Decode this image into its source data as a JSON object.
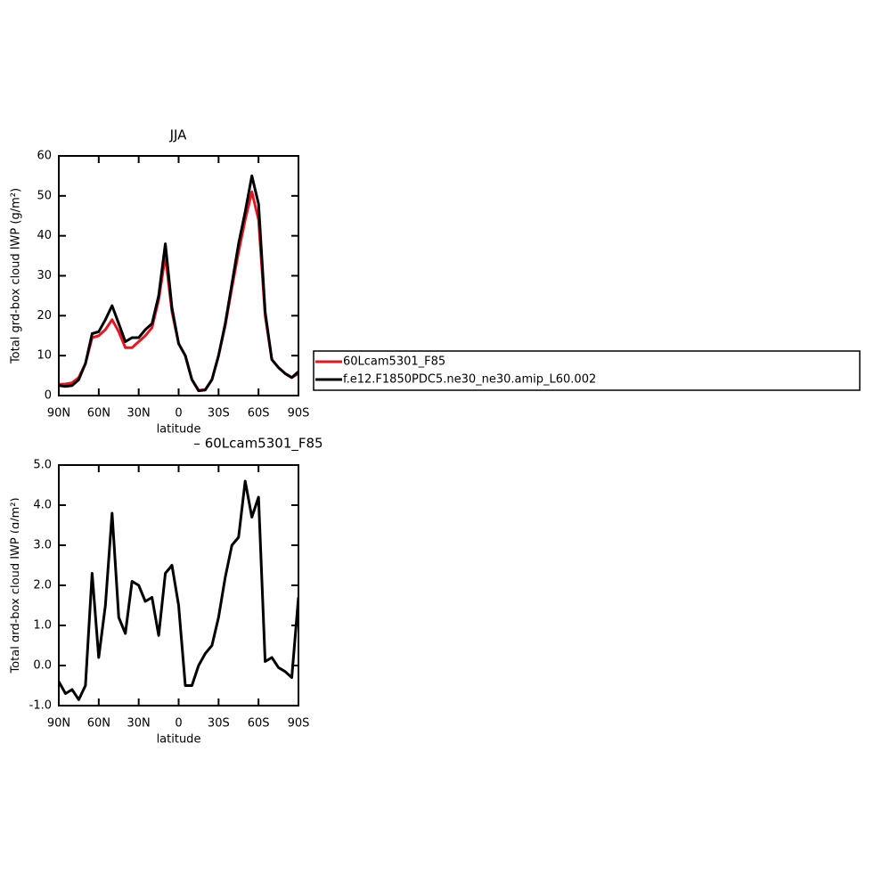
{
  "chart_data": [
    {
      "type": "line",
      "title": "JJA",
      "x_label": "latitude",
      "y_label": "Total grd-box cloud IWP (g/m²)",
      "x": [
        90,
        85,
        80,
        75,
        70,
        65,
        60,
        55,
        50,
        45,
        40,
        35,
        30,
        25,
        20,
        15,
        10,
        5,
        0,
        -5,
        -10,
        -15,
        -20,
        -25,
        -30,
        -35,
        -40,
        -45,
        -50,
        -55,
        -60,
        -65,
        -70,
        -75,
        -80,
        -85,
        -90
      ],
      "series": [
        {
          "name": "60Lcam5301_F85",
          "color": "#e8141e",
          "values": [
            2.8,
            2.9,
            3.2,
            4.5,
            8,
            14.5,
            15,
            16.5,
            19,
            16,
            12,
            12,
            13.5,
            15,
            17,
            24,
            35,
            21,
            13,
            10,
            4,
            1.3,
            1.5,
            4,
            10,
            17.5,
            27,
            36,
            44,
            51,
            44,
            20,
            9,
            7,
            5.5,
            4.5,
            5.5
          ]
        },
        {
          "name": "f.e12.F1850PDC5.ne30_ne30.amip_L60.002",
          "color": "#000000",
          "values": [
            2.5,
            2.3,
            2.5,
            4,
            8,
            15.5,
            16,
            19,
            22.5,
            18,
            13.5,
            14.5,
            14.5,
            16.5,
            18,
            25,
            38,
            22,
            13,
            10,
            4,
            1.2,
            1.4,
            4,
            10,
            18,
            28,
            38,
            46,
            55,
            48,
            21,
            9,
            7,
            5.5,
            4.5,
            6
          ]
        }
      ],
      "xlim": [
        90,
        -90
      ],
      "xticks": [
        {
          "value": 90,
          "label": "90N"
        },
        {
          "value": 60,
          "label": "60N"
        },
        {
          "value": 30,
          "label": "30N"
        },
        0,
        {
          "value": -30,
          "label": "30S"
        },
        {
          "value": -60,
          "label": "60S"
        },
        {
          "value": -90,
          "label": "90S"
        }
      ],
      "ylim": [
        0,
        60
      ],
      "yticks": [
        0,
        10,
        20,
        30,
        40,
        50,
        60
      ]
    },
    {
      "type": "line",
      "title": "– 60Lcam5301_F85",
      "x_label": "latitude",
      "y_label": "Total grd-box cloud IWP (g/m²)",
      "x": [
        90,
        85,
        80,
        75,
        70,
        65,
        60,
        55,
        50,
        45,
        40,
        35,
        30,
        25,
        20,
        15,
        10,
        5,
        0,
        -5,
        -10,
        -15,
        -20,
        -25,
        -30,
        -35,
        -40,
        -45,
        -50,
        -55,
        -60,
        -65,
        -70,
        -75,
        -80,
        -85,
        -90
      ],
      "series": [
        {
          "color": "#000000",
          "values": [
            -0.4,
            -0.7,
            -0.6,
            -0.85,
            -0.5,
            2.3,
            0.2,
            1.5,
            3.8,
            1.2,
            0.8,
            2.1,
            2.0,
            1.6,
            1.7,
            0.75,
            2.3,
            2.5,
            1.5,
            -0.5,
            -0.5,
            0,
            0.3,
            0.5,
            1.2,
            2.2,
            3.0,
            3.2,
            4.6,
            3.7,
            4.2,
            0.1,
            0.2,
            -0.05,
            -0.15,
            -0.3,
            1.7
          ]
        }
      ],
      "xlim": [
        90,
        -90
      ],
      "xticks": [
        {
          "value": 90,
          "label": "90N"
        },
        {
          "value": 60,
          "label": "60N"
        },
        {
          "value": 30,
          "label": "30N"
        },
        0,
        {
          "value": -30,
          "label": "30S"
        },
        {
          "value": -60,
          "label": "60S"
        },
        {
          "value": -90,
          "label": "90S"
        }
      ],
      "ylim": [
        -1,
        5
      ],
      "yticks": [
        {
          "value": -1,
          "label": "-1.0"
        },
        {
          "value": 0,
          "label": "0.0"
        },
        {
          "value": 1,
          "label": "1.0"
        },
        {
          "value": 2,
          "label": "2.0"
        },
        {
          "value": 3,
          "label": "3.0"
        },
        {
          "value": 4,
          "label": "4.0"
        },
        {
          "value": 5,
          "label": "5.0"
        }
      ]
    }
  ]
}
